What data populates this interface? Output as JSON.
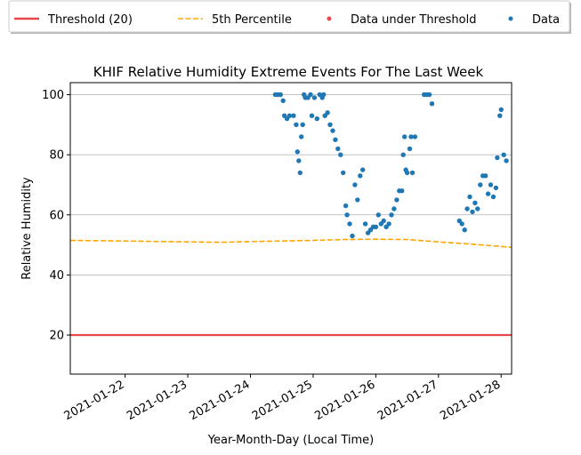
{
  "chart_data": {
    "type": "scatter",
    "title": "KHIF Relative Humidity Extreme Events For The Last Week",
    "xlabel": "Year-Month-Day (Local Time)",
    "ylabel": "Relative Humidity",
    "x_ticks": [
      "2021-01-22",
      "2021-01-23",
      "2021-01-24",
      "2021-01-25",
      "2021-01-26",
      "2021-01-27",
      "2021-01-28"
    ],
    "xlim": [
      "2021-01-21 03:00",
      "2021-01-28 04:00"
    ],
    "y_ticks": [
      20,
      40,
      60,
      80,
      100
    ],
    "ylim": [
      7,
      104
    ],
    "grid": "horizontal",
    "legend_position": "top, outside plot",
    "series": [
      {
        "name": "Threshold (20)",
        "kind": "line",
        "color": "#e8484a",
        "style": "solid",
        "points": [
          [
            "2021-01-21 03:00",
            20
          ],
          [
            "2021-01-28 04:00",
            20
          ]
        ]
      },
      {
        "name": "5th Percentile",
        "kind": "line",
        "color": "#ffa500",
        "style": "dashed",
        "points": [
          [
            "2021-01-21 03:00",
            51.5
          ],
          [
            "2021-01-22 00:00",
            51.3
          ],
          [
            "2021-01-23 00:00",
            51.0
          ],
          [
            "2021-01-23 12:00",
            50.9
          ],
          [
            "2021-01-24 00:00",
            51.1
          ],
          [
            "2021-01-25 00:00",
            51.5
          ],
          [
            "2021-01-25 12:00",
            51.8
          ],
          [
            "2021-01-26 00:00",
            51.9
          ],
          [
            "2021-01-26 12:00",
            51.8
          ],
          [
            "2021-01-27 00:00",
            51.0
          ],
          [
            "2021-01-27 12:00",
            50.3
          ],
          [
            "2021-01-28 00:00",
            49.5
          ],
          [
            "2021-01-28 04:00",
            49.2
          ]
        ]
      },
      {
        "name": "Data under Threshold",
        "kind": "scatter",
        "color": "#e8484a",
        "points": []
      },
      {
        "name": "Data",
        "kind": "scatter",
        "color": "#1f77b4",
        "points": [
          [
            "2021-01-24 09:30",
            100
          ],
          [
            "2021-01-24 10:30",
            100
          ],
          [
            "2021-01-24 11:30",
            100
          ],
          [
            "2021-01-24 12:30",
            98
          ],
          [
            "2021-01-24 13:00",
            93
          ],
          [
            "2021-01-24 14:00",
            92
          ],
          [
            "2021-01-24 15:00",
            93
          ],
          [
            "2021-01-24 16:30",
            93
          ],
          [
            "2021-01-24 17:30",
            90
          ],
          [
            "2021-01-24 18:00",
            81
          ],
          [
            "2021-01-24 18:30",
            78
          ],
          [
            "2021-01-24 19:00",
            74
          ],
          [
            "2021-01-24 19:30",
            86
          ],
          [
            "2021-01-24 20:00",
            90
          ],
          [
            "2021-01-24 20:30",
            100
          ],
          [
            "2021-01-24 21:00",
            99
          ],
          [
            "2021-01-24 22:00",
            99
          ],
          [
            "2021-01-24 23:00",
            100
          ],
          [
            "2021-01-24 23:30",
            93
          ],
          [
            "2021-01-25 00:30",
            99
          ],
          [
            "2021-01-25 01:30",
            92
          ],
          [
            "2021-01-25 02:30",
            100
          ],
          [
            "2021-01-25 03:30",
            99
          ],
          [
            "2021-01-25 04:00",
            100
          ],
          [
            "2021-01-25 04:30",
            93
          ],
          [
            "2021-01-25 05:30",
            94
          ],
          [
            "2021-01-25 06:30",
            90
          ],
          [
            "2021-01-25 07:30",
            88
          ],
          [
            "2021-01-25 08:30",
            85
          ],
          [
            "2021-01-25 09:30",
            82
          ],
          [
            "2021-01-25 10:30",
            80
          ],
          [
            "2021-01-25 11:30",
            74
          ],
          [
            "2021-01-25 12:30",
            63
          ],
          [
            "2021-01-25 13:00",
            60
          ],
          [
            "2021-01-25 14:00",
            57
          ],
          [
            "2021-01-25 15:00",
            53
          ],
          [
            "2021-01-25 16:00",
            70
          ],
          [
            "2021-01-25 17:00",
            65
          ],
          [
            "2021-01-25 18:00",
            73
          ],
          [
            "2021-01-25 19:00",
            75
          ],
          [
            "2021-01-25 20:00",
            57
          ],
          [
            "2021-01-25 21:00",
            54
          ],
          [
            "2021-01-25 22:00",
            55
          ],
          [
            "2021-01-25 23:00",
            56
          ],
          [
            "2021-01-26 00:00",
            56
          ],
          [
            "2021-01-26 01:00",
            60
          ],
          [
            "2021-01-26 02:00",
            57
          ],
          [
            "2021-01-26 03:00",
            58
          ],
          [
            "2021-01-26 04:00",
            56
          ],
          [
            "2021-01-26 05:00",
            57
          ],
          [
            "2021-01-26 06:00",
            60
          ],
          [
            "2021-01-26 07:00",
            62
          ],
          [
            "2021-01-26 08:00",
            65
          ],
          [
            "2021-01-26 09:00",
            68
          ],
          [
            "2021-01-26 10:00",
            68
          ],
          [
            "2021-01-26 10:30",
            80
          ],
          [
            "2021-01-26 11:00",
            86
          ],
          [
            "2021-01-26 11:30",
            75
          ],
          [
            "2021-01-26 12:00",
            74
          ],
          [
            "2021-01-26 13:00",
            82
          ],
          [
            "2021-01-26 13:30",
            86
          ],
          [
            "2021-01-26 14:00",
            74
          ],
          [
            "2021-01-26 15:00",
            86
          ],
          [
            "2021-01-26 18:30",
            100
          ],
          [
            "2021-01-26 19:30",
            100
          ],
          [
            "2021-01-26 20:30",
            100
          ],
          [
            "2021-01-26 21:30",
            97
          ],
          [
            "2021-01-27 08:00",
            58
          ],
          [
            "2021-01-27 09:00",
            57
          ],
          [
            "2021-01-27 10:00",
            55
          ],
          [
            "2021-01-27 11:00",
            62
          ],
          [
            "2021-01-27 12:00",
            66
          ],
          [
            "2021-01-27 13:00",
            61
          ],
          [
            "2021-01-27 14:00",
            64
          ],
          [
            "2021-01-27 15:00",
            62
          ],
          [
            "2021-01-27 16:00",
            70
          ],
          [
            "2021-01-27 17:00",
            73
          ],
          [
            "2021-01-27 18:00",
            73
          ],
          [
            "2021-01-27 19:00",
            67
          ],
          [
            "2021-01-27 20:00",
            70
          ],
          [
            "2021-01-27 21:00",
            66
          ],
          [
            "2021-01-27 22:00",
            69
          ],
          [
            "2021-01-27 22:30",
            79
          ],
          [
            "2021-01-27 23:30",
            93
          ],
          [
            "2021-01-28 00:00",
            95
          ],
          [
            "2021-01-28 01:00",
            80
          ],
          [
            "2021-01-28 02:00",
            78
          ]
        ]
      }
    ]
  }
}
